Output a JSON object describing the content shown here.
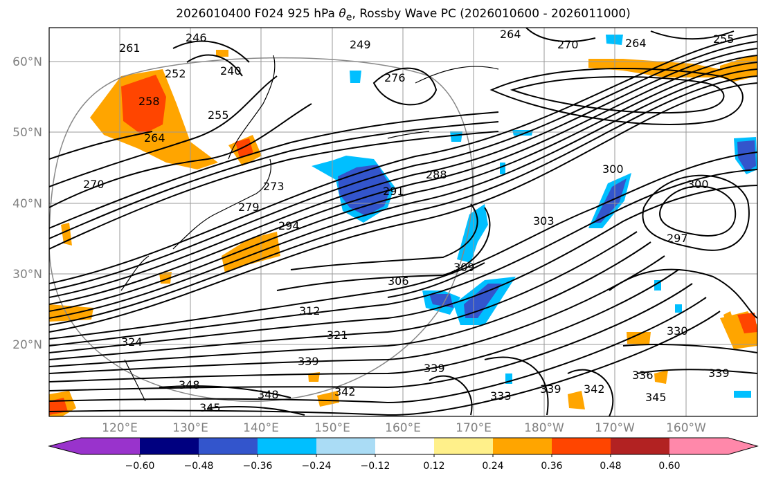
{
  "title": "2026010400 F024 925 hPa θe, Rossby Wave PC (2026010600 - 2026011000)",
  "title_parts": {
    "prefix": "2026010400 F024 925 hPa ",
    "theta": "θ",
    "sub": "e",
    "suffix": ", Rossby Wave PC (2026010600 - 2026011000)"
  },
  "map": {
    "lat_labels": [
      "60°N",
      "50°N",
      "40°N",
      "30°N",
      "20°N"
    ],
    "lon_labels": [
      "120°E",
      "130°E",
      "140°E",
      "150°E",
      "160°E",
      "170°E",
      "180°W",
      "170°W",
      "160°W"
    ],
    "contour_labels": [
      "246",
      "261",
      "240",
      "252",
      "258",
      "255",
      "264",
      "270",
      "249",
      "276",
      "264",
      "270",
      "264",
      "255",
      "273",
      "291",
      "279",
      "294",
      "288",
      "300",
      "300",
      "303",
      "297",
      "309",
      "306",
      "312",
      "321",
      "324",
      "330",
      "339",
      "348",
      "345",
      "339",
      "342",
      "333",
      "339",
      "342",
      "336",
      "339",
      "345",
      "348"
    ]
  },
  "colorbar": {
    "ticks": [
      "−0.60",
      "−0.48",
      "−0.36",
      "−0.24",
      "−0.12",
      "0.12",
      "0.24",
      "0.36",
      "0.48",
      "0.60"
    ],
    "colors": [
      "#9933cc",
      "#000080",
      "#3355cc",
      "#00bfff",
      "#aadcf5",
      "#ffffff",
      "#fff08a",
      "#ffa500",
      "#ff4500",
      "#b22222",
      "#ff88aa"
    ]
  }
}
